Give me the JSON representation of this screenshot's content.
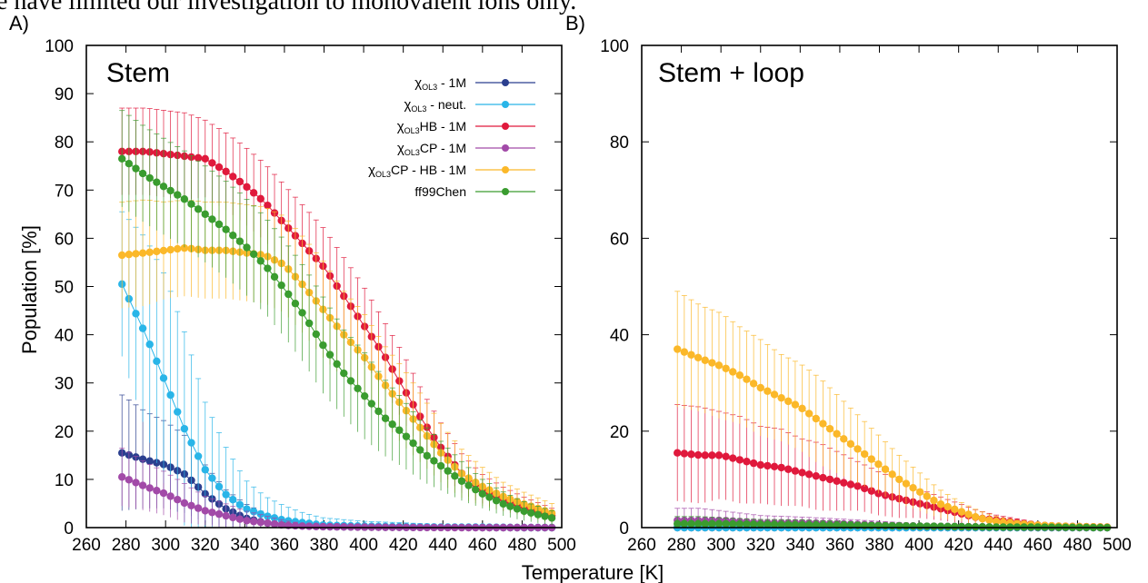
{
  "page": {
    "caption_fragment": "e have limited our investigation to monovalent ions only.",
    "xlabel": "Temperature [K]",
    "ylabel": "Population [%]"
  },
  "chart_data": [
    {
      "type": "line",
      "panel_label": "A)",
      "title": "Stem",
      "xlim": [
        260,
        500
      ],
      "ylim": [
        0,
        100
      ],
      "x_ticks": [
        260,
        280,
        300,
        320,
        340,
        360,
        380,
        400,
        420,
        440,
        460,
        480,
        500
      ],
      "y_ticks": [
        0,
        10,
        20,
        30,
        40,
        50,
        60,
        70,
        80,
        90,
        100
      ],
      "legend_position": "top-right",
      "error_bars": true,
      "series": [
        {
          "name": "χOL3 - 1M",
          "color": "#2b3f8f",
          "x": [
            278,
            290,
            300,
            310,
            320,
            330,
            340,
            350,
            360,
            380,
            400,
            420,
            440,
            460,
            480,
            495
          ],
          "y": [
            15.5,
            14,
            13,
            11,
            7,
            4,
            2,
            1,
            0.5,
            0.2,
            0.1,
            0.05,
            0.05,
            0,
            0,
            0
          ],
          "err": [
            12,
            10,
            9,
            8,
            6,
            4,
            3,
            2,
            1,
            0.5,
            0.3,
            0.2,
            0.2,
            0.1,
            0.1,
            0.1
          ]
        },
        {
          "name": "χOL3 - neut.",
          "color": "#29b5e8",
          "x": [
            278,
            290,
            300,
            310,
            320,
            330,
            340,
            350,
            360,
            370,
            380,
            400,
            420,
            440,
            460,
            480,
            495
          ],
          "y": [
            50.5,
            40,
            30,
            20,
            12,
            7,
            4,
            2.5,
            1.5,
            1,
            0.5,
            0.3,
            0.2,
            0.1,
            0.1,
            0,
            0
          ],
          "err": [
            15,
            20,
            22,
            20,
            14,
            10,
            6,
            4,
            3,
            2,
            1.5,
            1,
            0.8,
            0.5,
            0.5,
            0.3,
            0.3
          ]
        },
        {
          "name": "χOL3HB - 1M",
          "color": "#e0193c",
          "x": [
            278,
            290,
            300,
            310,
            320,
            330,
            340,
            350,
            360,
            370,
            380,
            390,
            400,
            410,
            420,
            430,
            440,
            450,
            460,
            470,
            480,
            495
          ],
          "y": [
            78,
            78,
            77.5,
            77,
            76.5,
            74,
            71,
            67.5,
            63,
            58.5,
            54,
            48,
            42,
            36,
            29,
            22,
            16,
            11,
            8,
            6,
            4.5,
            2.5
          ],
          "err": [
            9,
            9,
            9,
            9,
            8,
            8,
            8,
            8,
            8,
            8,
            8,
            8,
            8,
            7,
            7,
            6,
            5,
            4,
            3,
            2.5,
            2,
            1.5
          ]
        },
        {
          "name": "χOL3CP - 1M",
          "color": "#a24aa8",
          "x": [
            278,
            290,
            300,
            310,
            320,
            330,
            340,
            350,
            360,
            370,
            380,
            400,
            440,
            495
          ],
          "y": [
            10.5,
            8.5,
            7,
            5,
            3.5,
            2.5,
            1.5,
            1,
            0.5,
            0.3,
            0.2,
            0.1,
            0,
            0
          ],
          "err": [
            6,
            5,
            4.5,
            4,
            3,
            2.5,
            2,
            1.5,
            1,
            0.5,
            0.5,
            0.3,
            0.2,
            0.1
          ]
        },
        {
          "name": "χOL3CP - HB - 1M",
          "color": "#fbb829",
          "x": [
            278,
            290,
            300,
            310,
            320,
            330,
            340,
            350,
            360,
            370,
            380,
            390,
            400,
            410,
            420,
            430,
            440,
            450,
            460,
            470,
            480,
            495
          ],
          "y": [
            56.5,
            57,
            57.5,
            58,
            57.5,
            57.5,
            57,
            56.5,
            54.5,
            50,
            45,
            40,
            35.5,
            30,
            25,
            20,
            15,
            11,
            8.5,
            6.5,
            5,
            3
          ],
          "err": [
            11,
            11,
            10,
            10,
            10,
            10,
            10,
            10,
            10,
            10,
            10,
            9,
            9,
            8,
            8,
            7,
            6,
            5,
            4,
            3,
            2.5,
            2
          ]
        },
        {
          "name": "ff99Chen",
          "color": "#3a9c2f",
          "x": [
            278,
            290,
            300,
            310,
            320,
            330,
            340,
            350,
            360,
            370,
            380,
            390,
            400,
            410,
            420,
            430,
            440,
            450,
            460,
            470,
            480,
            495
          ],
          "y": [
            76.5,
            73,
            70.5,
            68,
            65,
            62,
            58.5,
            54.5,
            49.5,
            44,
            37.5,
            32,
            27.5,
            23,
            19.5,
            15.5,
            12.5,
            9.5,
            7,
            5,
            3.5,
            2
          ],
          "err": [
            10,
            10,
            10,
            10,
            10,
            10,
            10,
            10,
            10,
            10,
            10,
            9,
            9,
            8,
            7,
            6,
            5,
            4,
            3,
            2.5,
            2,
            1.5
          ]
        }
      ]
    },
    {
      "type": "line",
      "panel_label": "B)",
      "title": "Stem + loop",
      "xlim": [
        260,
        500
      ],
      "ylim": [
        0,
        100
      ],
      "x_ticks": [
        260,
        280,
        300,
        320,
        340,
        360,
        380,
        400,
        420,
        440,
        460,
        480,
        500
      ],
      "y_ticks": [
        0,
        20,
        40,
        60,
        80,
        100
      ],
      "error_bars": true,
      "series": [
        {
          "name": "χOL3 - 1M",
          "color": "#2b3f8f",
          "x": [
            278,
            300,
            340,
            400,
            495
          ],
          "y": [
            0,
            0,
            0,
            0,
            0
          ],
          "err": [
            0.2,
            0.2,
            0.1,
            0.1,
            0
          ]
        },
        {
          "name": "χOL3 - neut.",
          "color": "#29b5e8",
          "x": [
            278,
            300,
            340,
            400,
            495
          ],
          "y": [
            0,
            0,
            0,
            0,
            0
          ],
          "err": [
            0.2,
            0.2,
            0.1,
            0.1,
            0
          ]
        },
        {
          "name": "χOL3HB - 1M",
          "color": "#e0193c",
          "x": [
            278,
            290,
            300,
            310,
            320,
            330,
            340,
            350,
            360,
            370,
            380,
            390,
            400,
            410,
            420,
            430,
            440,
            450,
            460,
            470,
            480,
            495
          ],
          "y": [
            15.5,
            15,
            15,
            14,
            13,
            12.5,
            11.5,
            10.5,
            9.5,
            8.5,
            7,
            6,
            5,
            4,
            3,
            2,
            1.5,
            1,
            0.5,
            0.3,
            0.2,
            0.1
          ],
          "err": [
            10,
            10,
            9,
            9,
            8,
            8,
            7,
            7,
            6,
            5,
            4.5,
            4,
            3,
            2.5,
            2,
            1.5,
            1,
            0.8,
            0.5,
            0.3,
            0.2,
            0.1
          ]
        },
        {
          "name": "χOL3CP - 1M",
          "color": "#a24aa8",
          "x": [
            278,
            290,
            300,
            320,
            340,
            360,
            380,
            400,
            440,
            495
          ],
          "y": [
            1.5,
            1.5,
            1.5,
            1,
            1,
            0.8,
            0.5,
            0.3,
            0.1,
            0
          ],
          "err": [
            2.5,
            2.5,
            2,
            1.5,
            1.2,
            1,
            0.8,
            0.5,
            0.2,
            0.1
          ]
        },
        {
          "name": "χOL3CP - HB - 1M",
          "color": "#fbb829",
          "x": [
            278,
            290,
            300,
            310,
            320,
            330,
            340,
            350,
            360,
            370,
            380,
            390,
            400,
            410,
            420,
            430,
            440,
            450,
            460,
            470,
            480,
            495
          ],
          "y": [
            37,
            35,
            33.5,
            31.5,
            29,
            27,
            25,
            22,
            19,
            16,
            13,
            10,
            7.5,
            5,
            3.5,
            2,
            1.2,
            0.8,
            0.5,
            0.3,
            0.2,
            0.1
          ],
          "err": [
            12,
            11,
            11,
            10,
            10,
            9,
            9,
            9,
            8,
            7,
            6,
            5,
            4,
            3,
            2,
            1.5,
            1,
            0.6,
            0.4,
            0.3,
            0.2,
            0.1
          ]
        },
        {
          "name": "ff99Chen",
          "color": "#3a9c2f",
          "x": [
            278,
            290,
            300,
            320,
            340,
            360,
            380,
            400,
            420,
            440,
            460,
            495
          ],
          "y": [
            0.8,
            0.8,
            0.8,
            0.7,
            0.6,
            0.5,
            0.4,
            0.3,
            0.2,
            0.1,
            0.1,
            0
          ],
          "err": [
            1.5,
            1.5,
            1.2,
            1,
            1,
            0.8,
            0.6,
            0.5,
            0.3,
            0.2,
            0.1,
            0.1
          ]
        }
      ]
    }
  ]
}
